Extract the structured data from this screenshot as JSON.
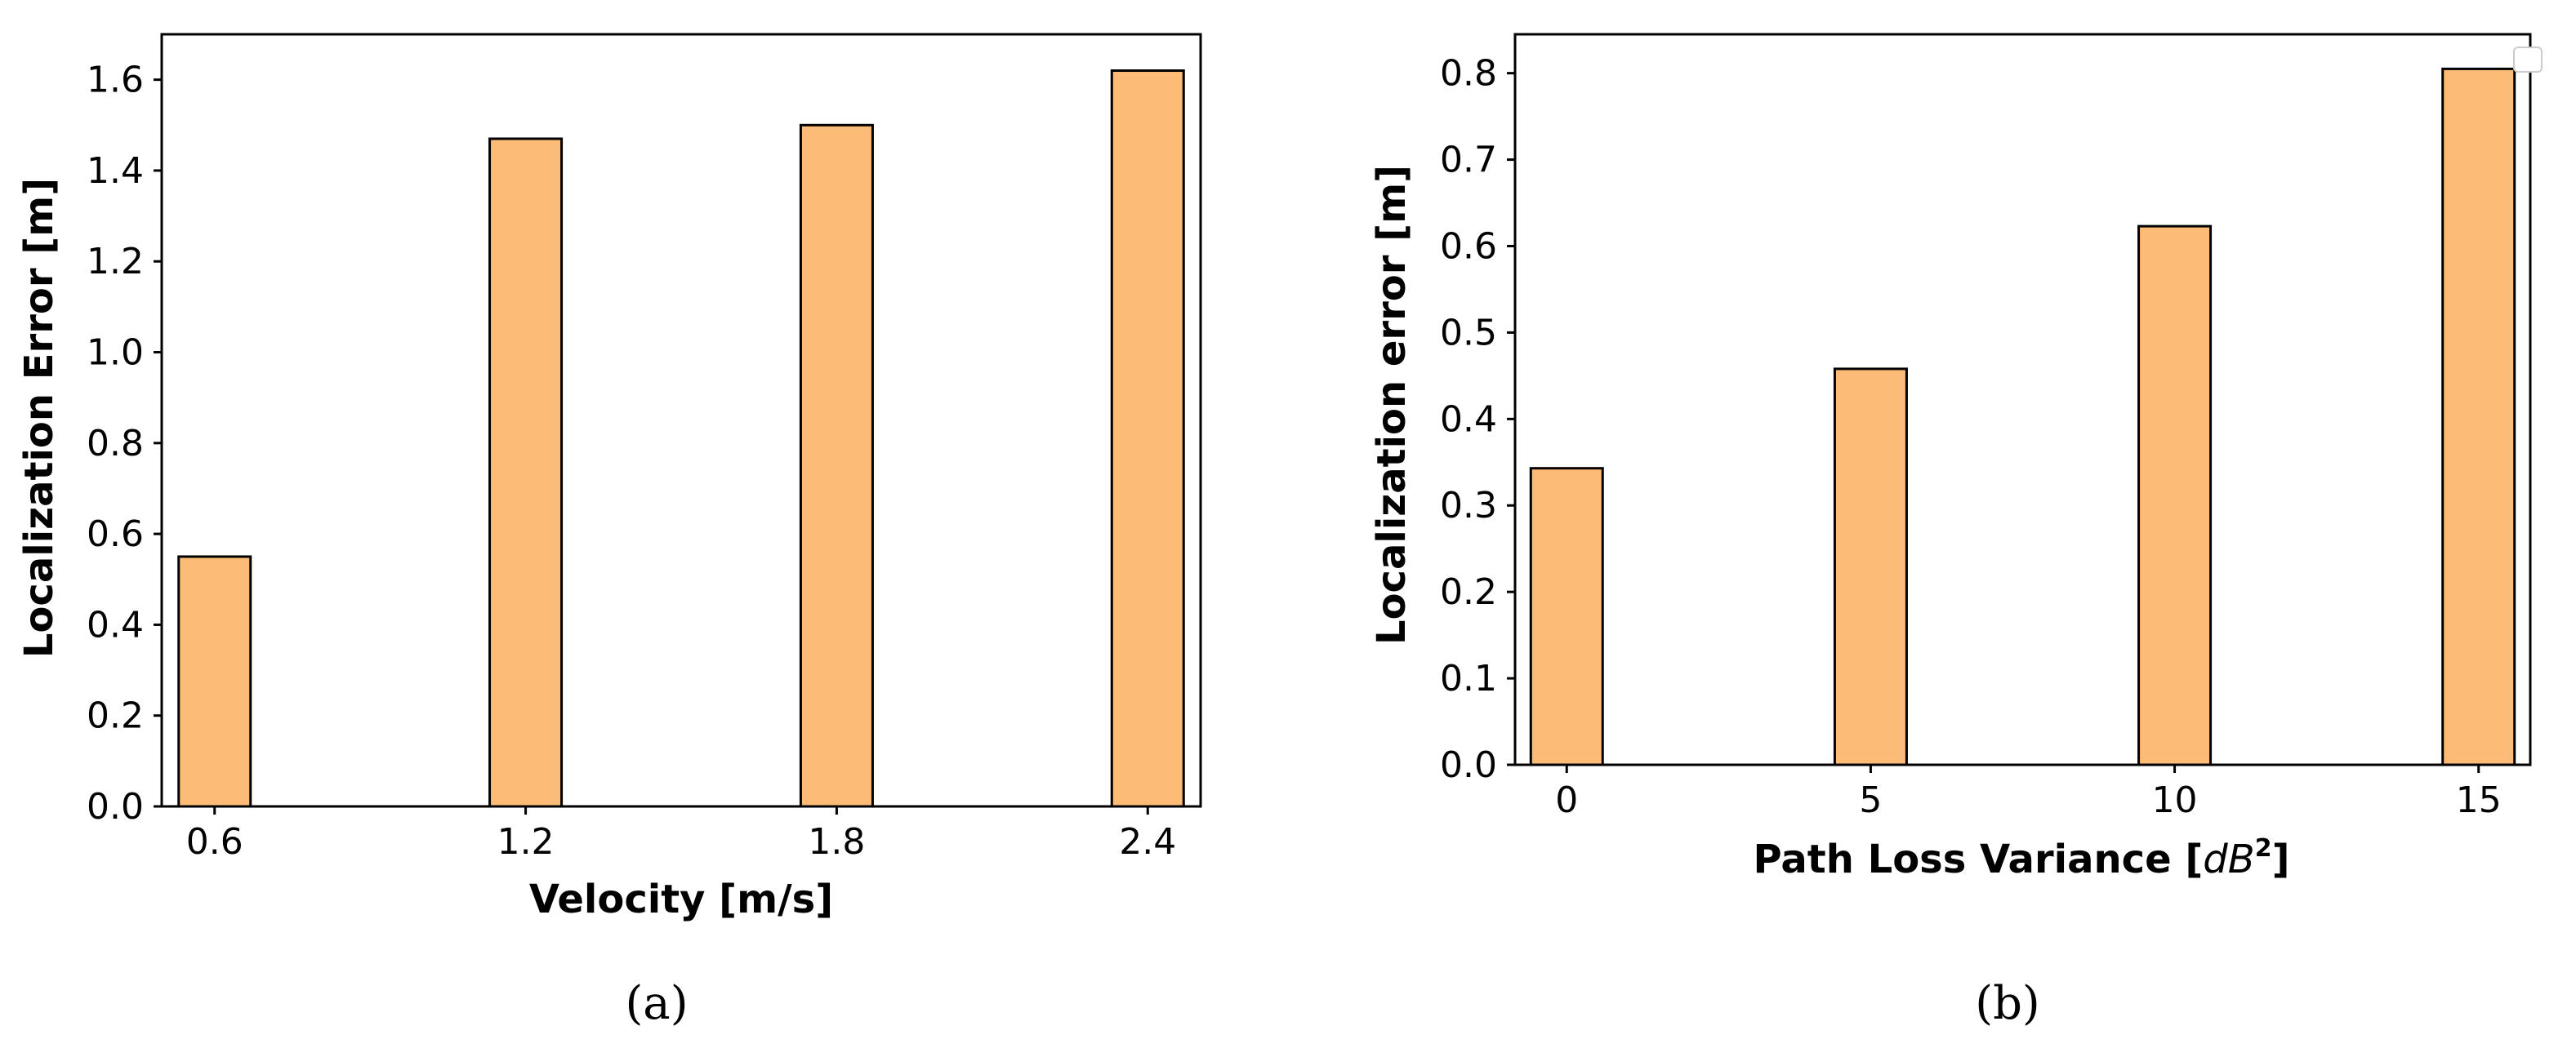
{
  "chart_data": [
    {
      "type": "bar",
      "categories": [
        "0.6",
        "1.2",
        "1.8",
        "2.4"
      ],
      "values": [
        0.55,
        1.47,
        1.5,
        1.62
      ],
      "xlabel": "Velocity [m/s]",
      "ylabel": "Localization Error [m]",
      "ylim": [
        0,
        1.7
      ],
      "yticks": [
        "0.0",
        "0.2",
        "0.4",
        "0.6",
        "0.8",
        "1.0",
        "1.2",
        "1.4",
        "1.6"
      ],
      "caption": "(a)",
      "bar_color": "#FDBB78",
      "edge_color": "#000000",
      "grid": false,
      "legend": false
    },
    {
      "type": "bar",
      "categories": [
        "0",
        "5",
        "10",
        "15"
      ],
      "values": [
        0.343,
        0.458,
        0.623,
        0.805
      ],
      "xlabel_prefix": "Path Loss Variance [",
      "xlabel_var": "dB",
      "xlabel_sup": "2",
      "xlabel_suffix": "]",
      "ylabel": "Localization error [m]",
      "ylim": [
        0,
        0.845
      ],
      "yticks": [
        "0.0",
        "0.1",
        "0.2",
        "0.3",
        "0.4",
        "0.5",
        "0.6",
        "0.7",
        "0.8"
      ],
      "caption": "(b)",
      "bar_color": "#FDBB78",
      "edge_color": "#000000",
      "grid": false,
      "legend": "top-right (empty)"
    }
  ]
}
